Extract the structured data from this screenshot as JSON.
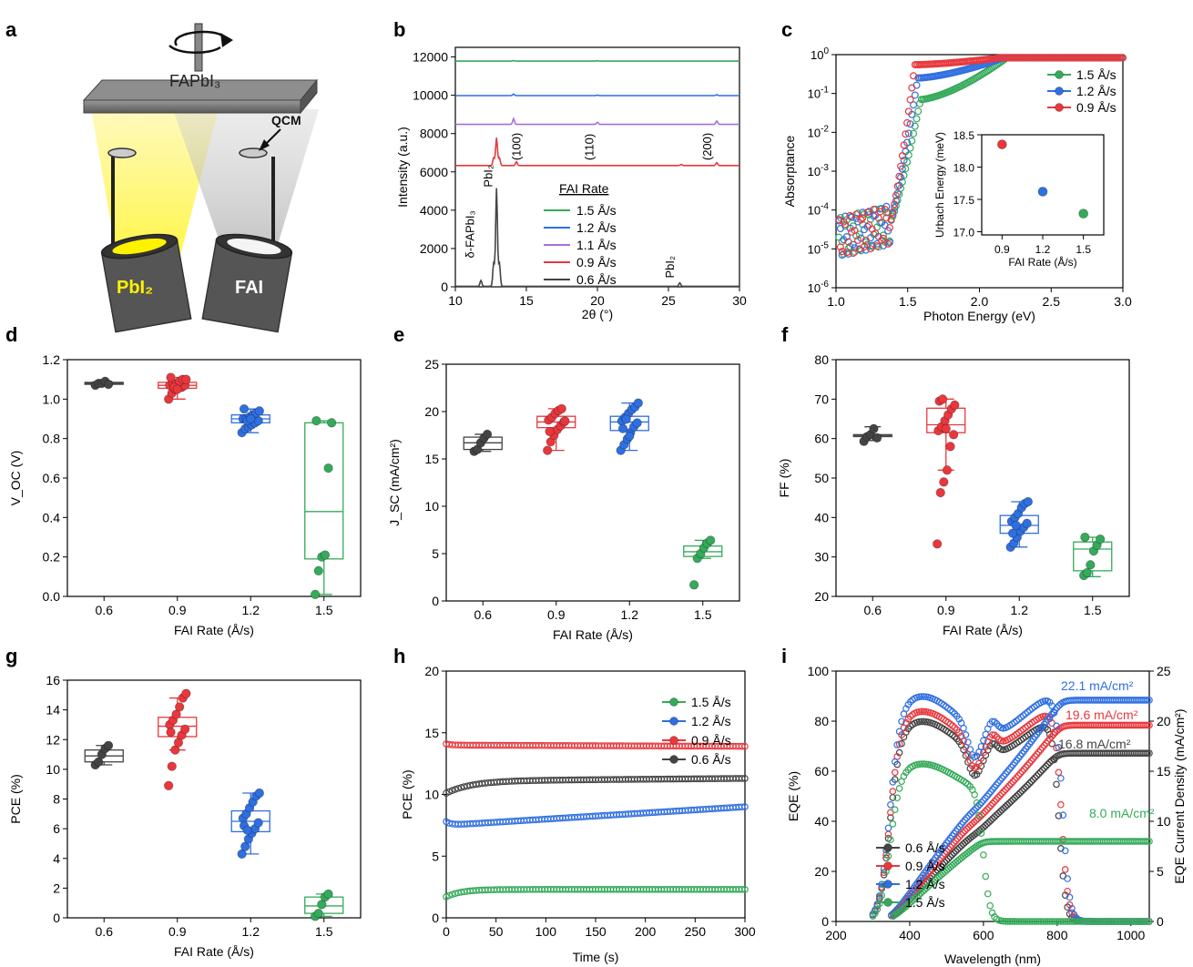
{
  "colors": {
    "black": "#444444",
    "red": "#e8383d",
    "blue": "#2f6fe0",
    "green": "#35aa5a",
    "purple": "#a86fd8",
    "yellow": "#fff200"
  },
  "panels": {
    "a": {
      "letter": "a",
      "substrate_label": "FAPbI₃",
      "qcm_label": "QCM",
      "source_left": "PbI₂",
      "source_right": "FAI"
    },
    "b": {
      "letter": "b",
      "ylabel": "Intensity (a.u.)",
      "xlabel": "2θ (°)",
      "legend_title": "FAI Rate",
      "annotations": [
        "δ-FAPbI₃",
        "PbI₂",
        "(100)",
        "(110)",
        "(200)",
        "PbI₂"
      ]
    },
    "c": {
      "letter": "c",
      "ylabel": "Absorptance",
      "xlabel": "Photon Energy (eV)",
      "inset_ylabel": "Urbach Energy (meV)",
      "inset_xlabel": "FAI Rate (Å/s)"
    },
    "d": {
      "letter": "d",
      "ylabel": "V_OC (V)",
      "xlabel": "FAI Rate (Å/s)"
    },
    "e": {
      "letter": "e",
      "ylabel": "J_SC (mA/cm²)",
      "xlabel": "FAI Rate (Å/s)"
    },
    "f": {
      "letter": "f",
      "ylabel": "FF (%)",
      "xlabel": "FAI Rate (Å/s)"
    },
    "g": {
      "letter": "g",
      "ylabel": "PCE (%)",
      "xlabel": "FAI Rate (Å/s)"
    },
    "h": {
      "letter": "h",
      "ylabel": "PCE (%)",
      "xlabel": "Time (s)"
    },
    "i": {
      "letter": "i",
      "ylabel": "EQE (%)",
      "ylabel2": "EQE Current Density (mA/cm²)",
      "xlabel": "Wavelength (nm)",
      "jsc_labels": [
        "22.1 mA/cm²",
        "19.6 mA/cm²",
        "16.8 mA/cm²",
        "8.0 mA/cm²"
      ]
    }
  },
  "chart_data": [
    {
      "panel": "b",
      "type": "line",
      "xlim": [
        10,
        30
      ],
      "ylim": [
        0,
        12500
      ],
      "xticks": [
        "10",
        "15",
        "20",
        "25",
        "30"
      ],
      "yticks": [
        "0",
        "2000",
        "4000",
        "6000",
        "8000",
        "10000",
        "12000"
      ],
      "series": [
        {
          "name": "1.5 Å/s",
          "color": "green",
          "offset": 11750
        },
        {
          "name": "1.2 Å/s",
          "color": "blue",
          "offset": 9950
        },
        {
          "name": "1.1 Å/s",
          "color": "purple",
          "offset": 8450
        },
        {
          "name": "0.9 Å/s",
          "color": "red",
          "offset": 6300
        },
        {
          "name": "0.6 Å/s",
          "color": "black",
          "offset": 0
        }
      ]
    },
    {
      "panel": "c",
      "type": "line",
      "scale": "log",
      "xlim": [
        1.0,
        3.0
      ],
      "ylim_exp": [
        -6,
        0
      ],
      "xticks": [
        "1.0",
        "1.5",
        "2.0",
        "2.5",
        "3.0"
      ],
      "series": [
        {
          "name": "1.5 Å/s",
          "color": "green"
        },
        {
          "name": "1.2 Å/s",
          "color": "blue"
        },
        {
          "name": "0.9 Å/s",
          "color": "red"
        }
      ],
      "inset": {
        "x": [
          0.9,
          1.2,
          1.5
        ],
        "y": [
          18.35,
          17.62,
          17.28
        ],
        "xticks": [
          "0.9",
          "1.2",
          "1.5"
        ],
        "yticks": [
          "17.0",
          "17.5",
          "18.0",
          "18.5"
        ],
        "ylim": [
          16.95,
          18.5
        ]
      }
    },
    {
      "panel": "d",
      "type": "box",
      "categories": [
        "0.6",
        "0.9",
        "1.2",
        "1.5"
      ],
      "ylim": [
        0,
        1.2
      ],
      "yticks": [
        "0.0",
        "0.2",
        "0.4",
        "0.6",
        "0.8",
        "1.0",
        "1.2"
      ],
      "boxes": [
        {
          "color": "black",
          "q1": 1.075,
          "med": 1.08,
          "q3": 1.085,
          "wl": 1.07,
          "wh": 1.09,
          "pts": [
            1.07,
            1.08,
            1.08,
            1.09,
            1.075
          ]
        },
        {
          "color": "red",
          "q1": 1.055,
          "med": 1.07,
          "q3": 1.085,
          "wl": 1.0,
          "wh": 1.11,
          "pts": [
            1.0,
            1.03,
            1.05,
            1.06,
            1.06,
            1.07,
            1.07,
            1.08,
            1.08,
            1.09,
            1.1,
            1.1,
            1.11,
            1.06,
            1.05
          ]
        },
        {
          "color": "blue",
          "q1": 0.88,
          "med": 0.9,
          "q3": 0.92,
          "wl": 0.83,
          "wh": 0.95,
          "pts": [
            0.83,
            0.85,
            0.86,
            0.87,
            0.88,
            0.89,
            0.9,
            0.9,
            0.91,
            0.92,
            0.93,
            0.94,
            0.95,
            0.89,
            0.9
          ]
        },
        {
          "color": "green",
          "q1": 0.19,
          "med": 0.43,
          "q3": 0.88,
          "wl": 0.01,
          "wh": 0.89,
          "pts": [
            0.01,
            0.13,
            0.2,
            0.21,
            0.65,
            0.88,
            0.89
          ]
        }
      ]
    },
    {
      "panel": "e",
      "type": "box",
      "categories": [
        "0.6",
        "0.9",
        "1.2",
        "1.5"
      ],
      "ylim": [
        0,
        25
      ],
      "yticks": [
        "0",
        "5",
        "10",
        "15",
        "20",
        "25"
      ],
      "boxes": [
        {
          "color": "black",
          "q1": 16.0,
          "med": 16.7,
          "q3": 17.3,
          "wl": 15.8,
          "wh": 17.6,
          "pts": [
            15.8,
            16.0,
            16.7,
            17.2,
            17.6
          ]
        },
        {
          "color": "red",
          "q1": 18.3,
          "med": 18.9,
          "q3": 19.5,
          "wl": 15.9,
          "wh": 20.3,
          "pts": [
            15.9,
            16.8,
            17.5,
            18.1,
            18.5,
            18.9,
            19.1,
            19.4,
            19.8,
            20.1,
            20.3,
            19.0,
            17.9
          ]
        },
        {
          "color": "blue",
          "q1": 18.0,
          "med": 18.9,
          "q3": 19.5,
          "wl": 15.9,
          "wh": 20.9,
          "pts": [
            15.9,
            16.5,
            17.1,
            17.8,
            18.4,
            18.8,
            19.0,
            19.4,
            19.8,
            20.2,
            20.5,
            20.9,
            18.2,
            19.2,
            17.4
          ]
        },
        {
          "color": "green",
          "q1": 4.7,
          "med": 5.2,
          "q3": 5.8,
          "wl": 4.5,
          "wh": 6.4,
          "pts": [
            1.7,
            4.5,
            5.0,
            5.6,
            6.1,
            6.4
          ]
        }
      ]
    },
    {
      "panel": "f",
      "type": "box",
      "categories": [
        "0.6",
        "0.9",
        "1.2",
        "1.5"
      ],
      "ylim": [
        20,
        80
      ],
      "yticks": [
        "20",
        "30",
        "40",
        "50",
        "60",
        "70",
        "80"
      ],
      "boxes": [
        {
          "color": "black",
          "q1": 60.5,
          "med": 60.8,
          "q3": 61.0,
          "wl": 59.5,
          "wh": 63.0,
          "pts": [
            59.3,
            60.5,
            61.0,
            62.5,
            60.2
          ]
        },
        {
          "color": "red",
          "q1": 61.5,
          "med": 63.5,
          "q3": 67.7,
          "wl": 52.0,
          "wh": 70.0,
          "pts": [
            33.3,
            46.3,
            49.0,
            52.0,
            58.0,
            61.0,
            62.0,
            63.0,
            64.5,
            66.0,
            67.5,
            68.5,
            69.5,
            70.0,
            62.5
          ]
        },
        {
          "color": "blue",
          "q1": 36.0,
          "med": 38.0,
          "q3": 40.5,
          "wl": 32.5,
          "wh": 44.0,
          "pts": [
            32.5,
            33.5,
            35.0,
            36.5,
            37.5,
            38.5,
            39.0,
            40.0,
            41.0,
            42.5,
            43.5,
            44.0,
            36.0,
            38.0
          ]
        },
        {
          "color": "green",
          "q1": 26.5,
          "med": 32.0,
          "q3": 33.8,
          "wl": 25.0,
          "wh": 35.0,
          "pts": [
            25.3,
            26.0,
            28.0,
            31.5,
            33.0,
            34.5,
            35.0
          ]
        }
      ]
    },
    {
      "panel": "g",
      "type": "box",
      "categories": [
        "0.6",
        "0.9",
        "1.2",
        "1.5"
      ],
      "ylim": [
        0,
        16
      ],
      "yticks": [
        "0",
        "2",
        "4",
        "6",
        "8",
        "10",
        "12",
        "14",
        "16"
      ],
      "boxes": [
        {
          "color": "black",
          "q1": 10.5,
          "med": 10.9,
          "q3": 11.3,
          "wl": 10.3,
          "wh": 11.6,
          "pts": [
            10.3,
            10.5,
            11.0,
            11.4,
            11.6
          ]
        },
        {
          "color": "red",
          "q1": 12.2,
          "med": 12.9,
          "q3": 13.5,
          "wl": 11.3,
          "wh": 14.8,
          "pts": [
            8.9,
            10.2,
            11.3,
            11.8,
            12.3,
            12.7,
            13.0,
            13.3,
            13.7,
            14.2,
            14.8,
            15.1,
            12.5
          ]
        },
        {
          "color": "blue",
          "q1": 5.8,
          "med": 6.5,
          "q3": 7.2,
          "wl": 4.3,
          "wh": 8.4,
          "pts": [
            4.3,
            4.8,
            5.3,
            5.7,
            6.0,
            6.4,
            6.7,
            7.0,
            7.4,
            7.8,
            8.2,
            8.4,
            6.2,
            5.9
          ]
        },
        {
          "color": "green",
          "q1": 0.3,
          "med": 0.8,
          "q3": 1.4,
          "wl": 0.1,
          "wh": 1.6,
          "pts": [
            0.1,
            0.3,
            0.9,
            1.4,
            1.6
          ]
        }
      ]
    },
    {
      "panel": "h",
      "type": "scatter",
      "xlim": [
        0,
        300
      ],
      "ylim": [
        0,
        20
      ],
      "xticks": [
        "0",
        "50",
        "100",
        "150",
        "200",
        "250",
        "300"
      ],
      "yticks": [
        "0",
        "5",
        "10",
        "15",
        "20"
      ],
      "series": [
        {
          "name": "1.5 Å/s",
          "color": "green",
          "start": 1.7,
          "plateau": 2.3,
          "end": 2.3,
          "tau": 15
        },
        {
          "name": "1.2 Å/s",
          "color": "blue",
          "start": 7.8,
          "plateau": 7.5,
          "end": 9.0,
          "tau": 5
        },
        {
          "name": "0.9 Å/s",
          "color": "red",
          "start": 14.1,
          "plateau": 14.0,
          "end": 13.9,
          "tau": 5
        },
        {
          "name": "0.6 Å/s",
          "color": "black",
          "start": 10.1,
          "plateau": 11.1,
          "end": 11.3,
          "tau": 25
        }
      ]
    },
    {
      "panel": "i",
      "type": "scatter",
      "xlim": [
        200,
        1050
      ],
      "ylim": [
        0,
        100
      ],
      "y2lim": [
        0,
        25
      ],
      "xticks": [
        "200",
        "400",
        "600",
        "800",
        "1000"
      ],
      "yticks": [
        "0",
        "20",
        "40",
        "60",
        "80",
        "100"
      ],
      "y2ticks": [
        "0",
        "5",
        "10",
        "15",
        "20",
        "25"
      ],
      "series": [
        {
          "name": "0.6 Å/s",
          "color": "black",
          "eqe_peak": 80,
          "edge": 805,
          "jsc": 16.8
        },
        {
          "name": "0.9 Å/s",
          "color": "red",
          "eqe_peak": 84,
          "edge": 812,
          "jsc": 19.6
        },
        {
          "name": "1.2 Å/s",
          "color": "blue",
          "eqe_peak": 90,
          "edge": 815,
          "jsc": 22.1
        },
        {
          "name": "1.5 Å/s",
          "color": "green",
          "eqe_peak": 63,
          "edge": 600,
          "jsc": 8.0
        }
      ]
    }
  ]
}
